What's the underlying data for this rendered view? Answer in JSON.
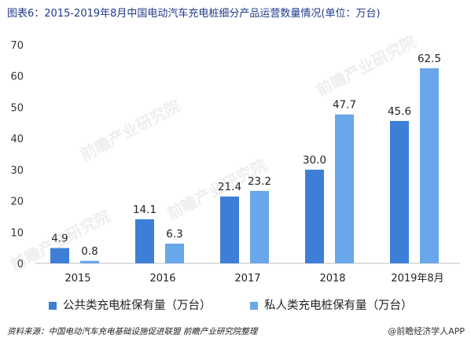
{
  "title": "图表6：2015-2019年8月中国电动汽车充电桩细分产品运营数量情况(单位：万台)",
  "chart_data": {
    "type": "bar",
    "categories": [
      "2015",
      "2016",
      "2017",
      "2018",
      "2019年8月"
    ],
    "series": [
      {
        "name": "公共类充电桩保有量（万台）",
        "values": [
          4.9,
          14.1,
          21.4,
          30.0,
          45.6
        ],
        "color": "#3d7fd6"
      },
      {
        "name": "私人类充电桩保有量（万台）",
        "values": [
          0.8,
          6.3,
          23.2,
          47.7,
          62.5
        ],
        "color": "#6aa6ea"
      }
    ],
    "data_labels": [
      [
        "4.9",
        "14.1",
        "21.4",
        "30.0",
        "45.6"
      ],
      [
        "0.8",
        "6.3",
        "23.2",
        "47.7",
        "62.5"
      ]
    ],
    "ylim": [
      0,
      70
    ],
    "yticks": [
      "0",
      "10",
      "20",
      "30",
      "40",
      "50",
      "60",
      "70"
    ],
    "xlabel": "",
    "ylabel": "",
    "grid": false,
    "legend_position": "bottom"
  },
  "legend": {
    "public_label": "公共类充电桩保有量（万台）",
    "private_label": "私人类充电桩保有量（万台）"
  },
  "footer": {
    "source": "资料来源：中国电动汽车充电基础设施促进联盟 前瞻产业研究院整理",
    "logo": "@前瞻经济学人APP"
  },
  "watermark_text": "前瞻产业研究院",
  "colors": {
    "title": "#1f3a8a",
    "public": "#3d7fd6",
    "private": "#6aa6ea",
    "axis": "#bfbfbf"
  }
}
